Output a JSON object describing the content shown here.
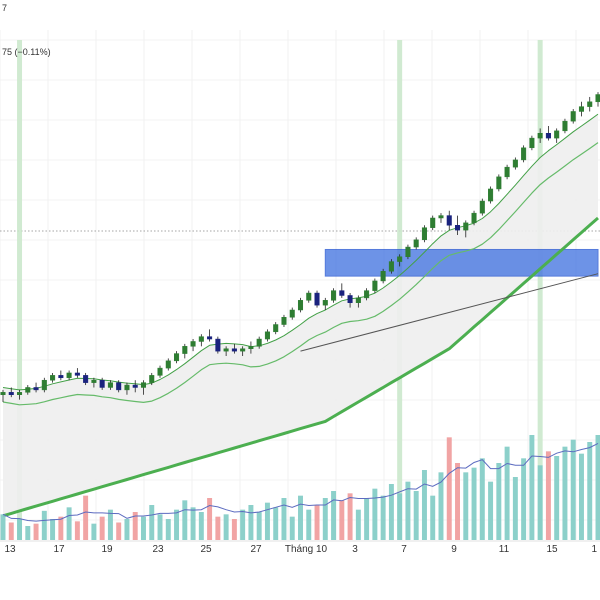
{
  "header": {
    "top_fragment": "7",
    "change_text": "75 (−0.11%)"
  },
  "colors": {
    "up": "#26a69a",
    "up_candle": "#2e7d32",
    "down_candle": "#1a237e",
    "down_volume": "#ef9a9a",
    "up_volume": "#80cbc4",
    "ma_long": "#4caf50",
    "ma_short": "#66bb6a",
    "ma_fast": "#43a047",
    "volume_ma": "#5c6bc0",
    "zone": "#3d6fe0",
    "highlight": "#c8e6c9",
    "trendline": "#555555"
  },
  "chart_data": {
    "type": "candlestick",
    "x_tick_labels": [
      "13",
      "17",
      "19",
      "23",
      "25",
      "27",
      "Tháng 10",
      "3",
      "7",
      "9",
      "11",
      "15",
      "1"
    ],
    "candles": [
      [
        90,
        92,
        87,
        91
      ],
      [
        91,
        93,
        89,
        90
      ],
      [
        90,
        92,
        88,
        91
      ],
      [
        91,
        94,
        90,
        93
      ],
      [
        93,
        95,
        91,
        92
      ],
      [
        92,
        97,
        91,
        96
      ],
      [
        96,
        99,
        95,
        98
      ],
      [
        98,
        100,
        96,
        97
      ],
      [
        97,
        100,
        96,
        99
      ],
      [
        99,
        101,
        97,
        98
      ],
      [
        98,
        99,
        94,
        95
      ],
      [
        95,
        97,
        93,
        96
      ],
      [
        96,
        97,
        92,
        93
      ],
      [
        93,
        96,
        92,
        95
      ],
      [
        95,
        96,
        91,
        92
      ],
      [
        92,
        95,
        90,
        94
      ],
      [
        94,
        96,
        91,
        93
      ],
      [
        93,
        96,
        90,
        95
      ],
      [
        95,
        99,
        94,
        98
      ],
      [
        98,
        102,
        97,
        101
      ],
      [
        101,
        105,
        100,
        104
      ],
      [
        104,
        108,
        103,
        107
      ],
      [
        107,
        111,
        105,
        110
      ],
      [
        110,
        113,
        108,
        112
      ],
      [
        112,
        115,
        110,
        114
      ],
      [
        114,
        117,
        112,
        113
      ],
      [
        113,
        114,
        107,
        108
      ],
      [
        108,
        110,
        106,
        109
      ],
      [
        109,
        111,
        107,
        108
      ],
      [
        108,
        110,
        106,
        109
      ],
      [
        109,
        112,
        107,
        110
      ],
      [
        110,
        114,
        109,
        113
      ],
      [
        113,
        117,
        112,
        116
      ],
      [
        116,
        120,
        115,
        119
      ],
      [
        119,
        123,
        118,
        122
      ],
      [
        122,
        126,
        121,
        125
      ],
      [
        125,
        130,
        124,
        129
      ],
      [
        129,
        133,
        128,
        132
      ],
      [
        132,
        133,
        126,
        127
      ],
      [
        127,
        130,
        125,
        129
      ],
      [
        129,
        134,
        128,
        133
      ],
      [
        133,
        136,
        130,
        131
      ],
      [
        131,
        132,
        126,
        128
      ],
      [
        128,
        131,
        126,
        130
      ],
      [
        130,
        134,
        129,
        133
      ],
      [
        133,
        138,
        132,
        137
      ],
      [
        137,
        142,
        136,
        141
      ],
      [
        141,
        146,
        140,
        145
      ],
      [
        145,
        148,
        143,
        147
      ],
      [
        147,
        152,
        146,
        151
      ],
      [
        151,
        155,
        150,
        154
      ],
      [
        154,
        160,
        153,
        159
      ],
      [
        159,
        164,
        158,
        163
      ],
      [
        163,
        165,
        161,
        164
      ],
      [
        164,
        166,
        158,
        160
      ],
      [
        160,
        164,
        156,
        158
      ],
      [
        158,
        162,
        155,
        161
      ],
      [
        161,
        166,
        160,
        165
      ],
      [
        165,
        171,
        164,
        170
      ],
      [
        170,
        176,
        169,
        175
      ],
      [
        175,
        181,
        174,
        180
      ],
      [
        180,
        185,
        179,
        184
      ],
      [
        184,
        188,
        183,
        187
      ],
      [
        187,
        193,
        186,
        192
      ],
      [
        192,
        197,
        191,
        196
      ],
      [
        196,
        200,
        194,
        198
      ],
      [
        198,
        201,
        195,
        196
      ],
      [
        196,
        200,
        194,
        199
      ],
      [
        199,
        204,
        198,
        203
      ],
      [
        203,
        208,
        202,
        207
      ],
      [
        207,
        211,
        205,
        209
      ],
      [
        209,
        213,
        207,
        211
      ],
      [
        211,
        215,
        209,
        214
      ]
    ],
    "ma_fast": [
      93,
      92.5,
      92,
      92.3,
      92.6,
      93.5,
      94.5,
      95.3,
      96.1,
      96.8,
      96.7,
      96.6,
      96.1,
      95.8,
      95.2,
      94.8,
      94.5,
      94.2,
      94.8,
      96.3,
      98.2,
      100.4,
      102.8,
      105.5,
      108.2,
      110.4,
      110.9,
      111.2,
      111.0,
      110.7,
      109.9,
      110.2,
      111.2,
      112.6,
      114.4,
      116.6,
      119.0,
      121.6,
      123.5,
      125.0,
      127.0,
      128.8,
      129.6,
      130.0,
      130.7,
      132.0,
      134.1,
      136.6,
      139.3,
      142.3,
      145.5,
      148.9,
      152.4,
      155.6,
      157.9,
      159.0,
      159.8,
      160.9,
      162.8,
      165.6,
      169.0,
      172.8,
      176.6,
      180.5,
      184.4,
      188.0,
      190.8,
      193.3,
      195.9,
      198.6,
      201.0,
      203.4,
      205.9
    ],
    "ma_long": [
      40,
      41,
      42,
      43,
      44,
      45,
      46,
      47,
      48,
      49,
      50,
      51,
      52,
      53,
      54,
      55,
      56,
      57,
      58,
      59,
      60,
      61,
      62,
      63,
      64,
      65,
      66,
      67,
      68,
      69,
      70,
      71,
      72,
      73,
      74,
      75,
      76,
      77,
      78,
      79,
      81,
      83,
      85,
      87,
      89,
      91,
      93,
      95,
      97,
      99,
      101,
      103,
      105,
      107,
      109,
      112,
      115,
      118,
      121,
      124,
      127,
      130,
      133,
      136,
      139,
      142,
      145,
      148,
      151,
      154,
      157,
      160,
      163
    ],
    "volume": [
      22,
      15,
      18,
      12,
      14,
      25,
      18,
      20,
      28,
      16,
      38,
      14,
      20,
      26,
      15,
      18,
      24,
      20,
      30,
      22,
      18,
      26,
      34,
      28,
      24,
      36,
      20,
      22,
      18,
      26,
      30,
      24,
      32,
      28,
      36,
      20,
      38,
      26,
      30,
      36,
      42,
      34,
      40,
      26,
      36,
      44,
      38,
      48,
      40,
      50,
      42,
      60,
      38,
      58,
      88,
      66,
      58,
      62,
      70,
      50,
      66,
      80,
      54,
      70,
      90,
      64,
      76,
      72,
      80,
      86,
      74,
      84,
      90
    ],
    "highlights_x": [
      2,
      48,
      65
    ],
    "zone": {
      "y_top": 150,
      "y_bottom": 139,
      "x_start": 39,
      "x_end": 72
    },
    "trendline": {
      "x1": 36,
      "y1": 108,
      "x2": 72,
      "y2": 140
    }
  }
}
